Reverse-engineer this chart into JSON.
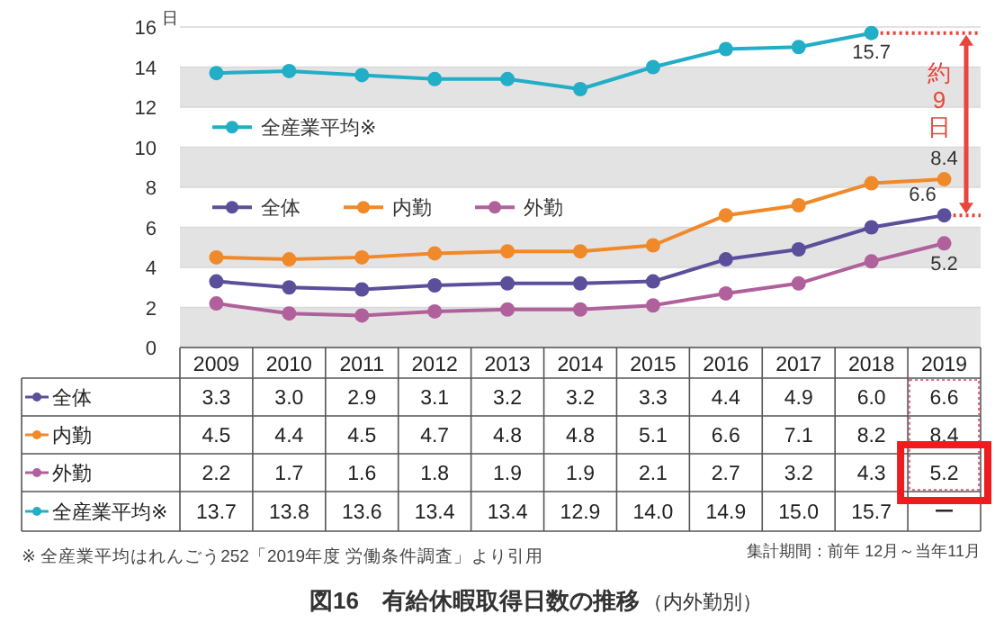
{
  "chart_data": {
    "type": "line",
    "title": "図16　有給休暇取得日数の推移",
    "subtitle": "（内外勤別）",
    "ylabel": "日",
    "categories": [
      "2009",
      "2010",
      "2011",
      "2012",
      "2013",
      "2014",
      "2015",
      "2016",
      "2017",
      "2018",
      "2019"
    ],
    "series": [
      {
        "name": "全体",
        "color": "#5b4f9b",
        "values": [
          3.3,
          3.0,
          2.9,
          3.1,
          3.2,
          3.2,
          3.3,
          4.4,
          4.9,
          6.0,
          6.6
        ],
        "value_labels": [
          "3.3",
          "3.0",
          "2.9",
          "3.1",
          "3.2",
          "3.2",
          "3.3",
          "4.4",
          "4.9",
          "6.0",
          "6.6"
        ]
      },
      {
        "name": "内勤",
        "color": "#f0892a",
        "values": [
          4.5,
          4.4,
          4.5,
          4.7,
          4.8,
          4.8,
          5.1,
          6.6,
          7.1,
          8.2,
          8.4
        ],
        "value_labels": [
          "4.5",
          "4.4",
          "4.5",
          "4.7",
          "4.8",
          "4.8",
          "5.1",
          "6.6",
          "7.1",
          "8.2",
          "8.4"
        ]
      },
      {
        "name": "外勤",
        "color": "#b0609b",
        "values": [
          2.2,
          1.7,
          1.6,
          1.8,
          1.9,
          1.9,
          2.1,
          2.7,
          3.2,
          4.3,
          5.2
        ],
        "value_labels": [
          "2.2",
          "1.7",
          "1.6",
          "1.8",
          "1.9",
          "1.9",
          "2.1",
          "2.7",
          "3.2",
          "4.3",
          "5.2"
        ]
      },
      {
        "name": "全産業平均※",
        "color": "#22aec6",
        "values": [
          13.7,
          13.8,
          13.6,
          13.4,
          13.4,
          12.9,
          14.0,
          14.9,
          15.0,
          15.7,
          null
        ],
        "value_labels": [
          "13.7",
          "13.8",
          "13.6",
          "13.4",
          "13.4",
          "12.9",
          "14.0",
          "14.9",
          "15.0",
          "15.7",
          "ー"
        ]
      }
    ],
    "ylim": [
      0,
      16
    ],
    "yticks": [
      0,
      2,
      4,
      6,
      8,
      10,
      12,
      14,
      16
    ],
    "grid": "y",
    "legend": "left",
    "marker": "circle",
    "line_style": "solid",
    "annotations": [
      {
        "text": "15.7",
        "x": "2018",
        "y": 15.7
      },
      {
        "text": "8.4",
        "x": "2019",
        "y": 8.4
      },
      {
        "text": "6.6",
        "x": "2019",
        "y": 6.6
      },
      {
        "text": "5.2",
        "x": "2019",
        "y": 5.2
      },
      "約9日",
      "※ 全産業平均はれんごう252「2019年度 労働条件調査」より引用",
      "集計期間：前年 12月～当年11月"
    ]
  }
}
